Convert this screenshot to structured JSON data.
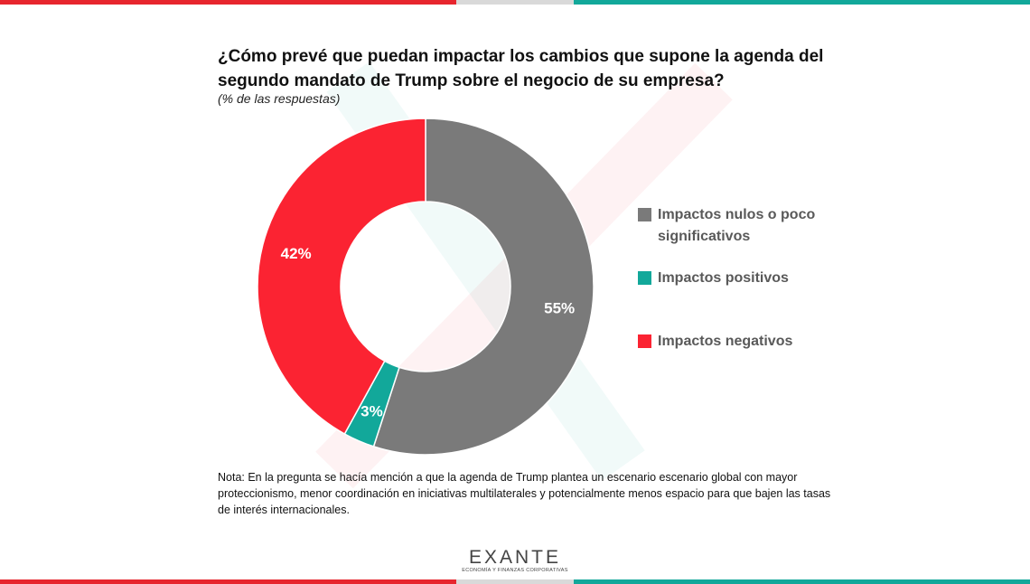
{
  "header": {
    "title": "¿Cómo prevé que puedan impactar los cambios que supone la agenda del segundo mandato de Trump sobre el negocio de su empresa?",
    "subtitle": "(% de las respuestas)"
  },
  "chart_data": {
    "type": "pie",
    "title": "¿Cómo prevé que puedan impactar los cambios que supone la agenda del segundo mandato de Trump sobre el negocio de su empresa?",
    "subtitle": "(% de las respuestas)",
    "categories": [
      "Impactos nulos o poco significativos",
      "Impactos positivos",
      "Impactos negativos"
    ],
    "values": [
      55,
      3,
      42
    ],
    "data_labels": [
      "55%",
      "3%",
      "42%"
    ],
    "colors": [
      "#7a7a7a",
      "#12a89a",
      "#fb2332"
    ],
    "donut": true,
    "legend_position": "right"
  },
  "legend": {
    "items": [
      {
        "label": "Impactos nulos o poco significativos",
        "color": "#7a7a7a"
      },
      {
        "label": "Impactos positivos",
        "color": "#12a89a"
      },
      {
        "label": "Impactos negativos",
        "color": "#fb2332"
      }
    ]
  },
  "note": "Nota: En la pregunta se hacía mención a que la agenda de Trump plantea un escenario escenario global con mayor proteccionismo, menor coordinación en iniciativas multilaterales y potencialmente menos espacio para que bajen las tasas de interés internacionales.",
  "logo": {
    "name": "EXANTE",
    "tagline": "ECONOMÍA Y FINANZAS CORPORATIVAS"
  },
  "brand_colors": {
    "red": "#e7262e",
    "gray": "#d9d9d9",
    "teal": "#12a89a"
  }
}
